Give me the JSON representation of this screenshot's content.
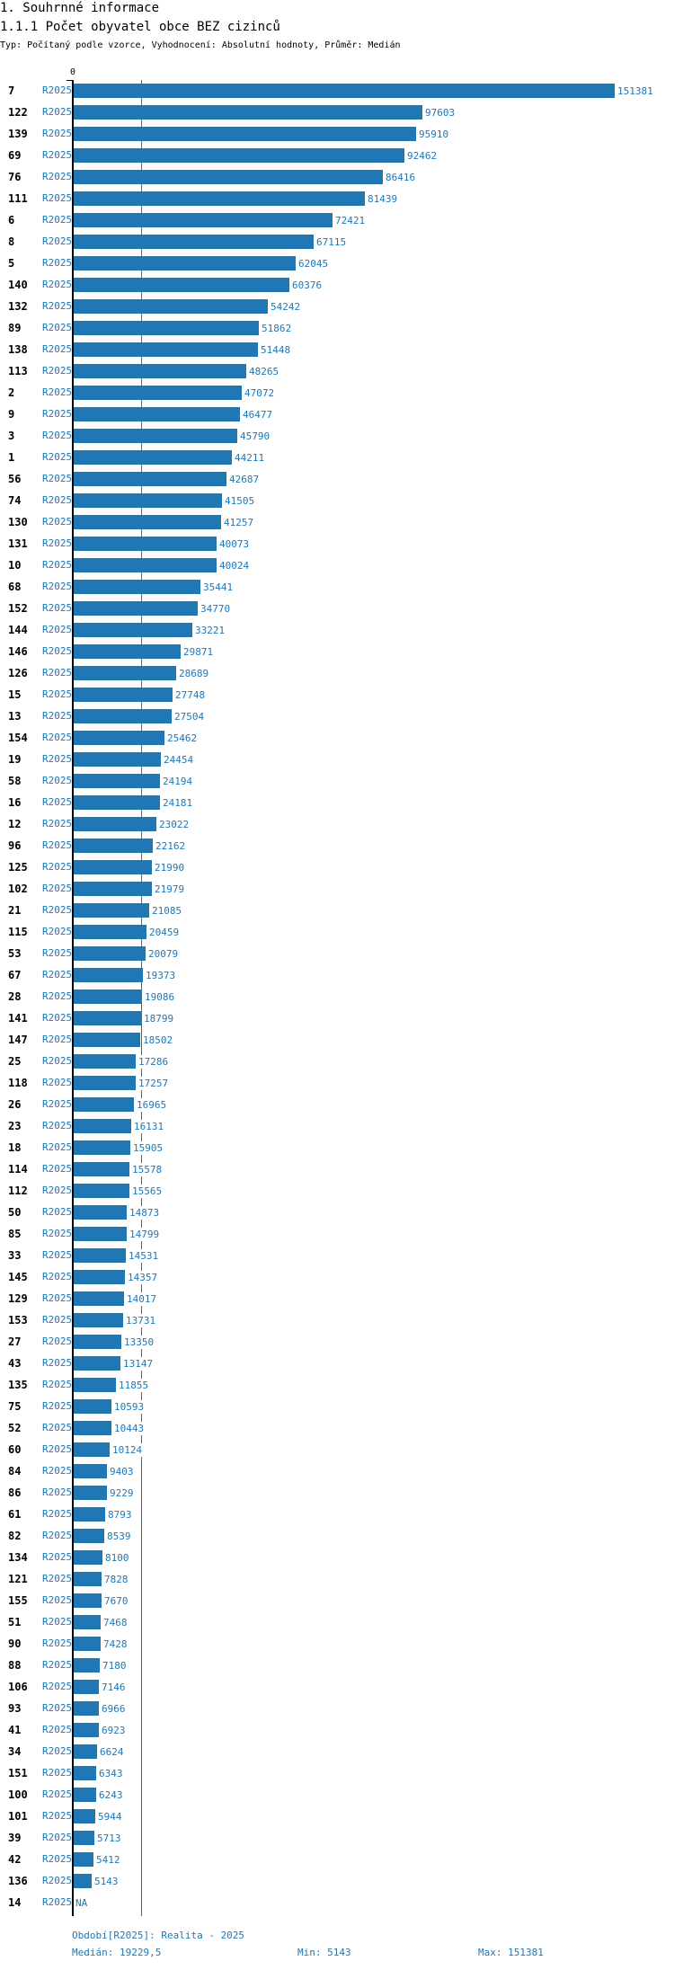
{
  "header": {
    "section": "1. Souhrnné informace",
    "title": "1.1.1 Počet obyvatel obce BEZ cizinců",
    "subtitle": "Typ: Počítaný podle vzorce, Vyhodnocení: Absolutní hodnoty, Průměr: Medián"
  },
  "chart_data": {
    "type": "bar",
    "orientation": "horizontal",
    "title": "1.1.1 Počet obyvatel obce BEZ cizinců",
    "x_tick_zero": "0",
    "period": "R2025",
    "categories": [
      "7",
      "122",
      "139",
      "69",
      "76",
      "111",
      "6",
      "8",
      "5",
      "140",
      "132",
      "89",
      "138",
      "113",
      "2",
      "9",
      "3",
      "1",
      "56",
      "74",
      "130",
      "131",
      "10",
      "68",
      "152",
      "144",
      "146",
      "126",
      "15",
      "13",
      "154",
      "19",
      "58",
      "16",
      "12",
      "96",
      "125",
      "102",
      "21",
      "115",
      "53",
      "67",
      "28",
      "141",
      "147",
      "25",
      "118",
      "26",
      "23",
      "18",
      "114",
      "112",
      "50",
      "85",
      "33",
      "145",
      "129",
      "153",
      "27",
      "43",
      "135",
      "75",
      "52",
      "60",
      "84",
      "86",
      "61",
      "82",
      "134",
      "121",
      "155",
      "51",
      "90",
      "88",
      "106",
      "93",
      "41",
      "34",
      "151",
      "100",
      "101",
      "39",
      "42",
      "136",
      "14"
    ],
    "values": [
      151381,
      97603,
      95910,
      92462,
      86416,
      81439,
      72421,
      67115,
      62045,
      60376,
      54242,
      51862,
      51448,
      48265,
      47072,
      46477,
      45790,
      44211,
      42687,
      41505,
      41257,
      40073,
      40024,
      35441,
      34770,
      33221,
      29871,
      28689,
      27748,
      27504,
      25462,
      24454,
      24194,
      24181,
      23022,
      22162,
      21990,
      21979,
      21085,
      20459,
      20079,
      19373,
      19086,
      18799,
      18502,
      17286,
      17257,
      16965,
      16131,
      15905,
      15578,
      15565,
      14873,
      14799,
      14531,
      14357,
      14017,
      13731,
      13350,
      13147,
      11855,
      10593,
      10443,
      10124,
      9403,
      9229,
      8793,
      8539,
      8100,
      7828,
      7670,
      7468,
      7428,
      7180,
      7146,
      6966,
      6923,
      6624,
      6343,
      6243,
      5944,
      5713,
      5412,
      5143,
      null
    ],
    "missing_label": "NA",
    "xlim": [
      0,
      151381
    ],
    "median": 19229.5,
    "bar_color": "#1f77b4"
  },
  "footer": {
    "period_legend": "Období[R2025]: Realita - 2025",
    "median": "Medián: 19229,5",
    "min": "Min: 5143",
    "max": "Max: 151381"
  }
}
